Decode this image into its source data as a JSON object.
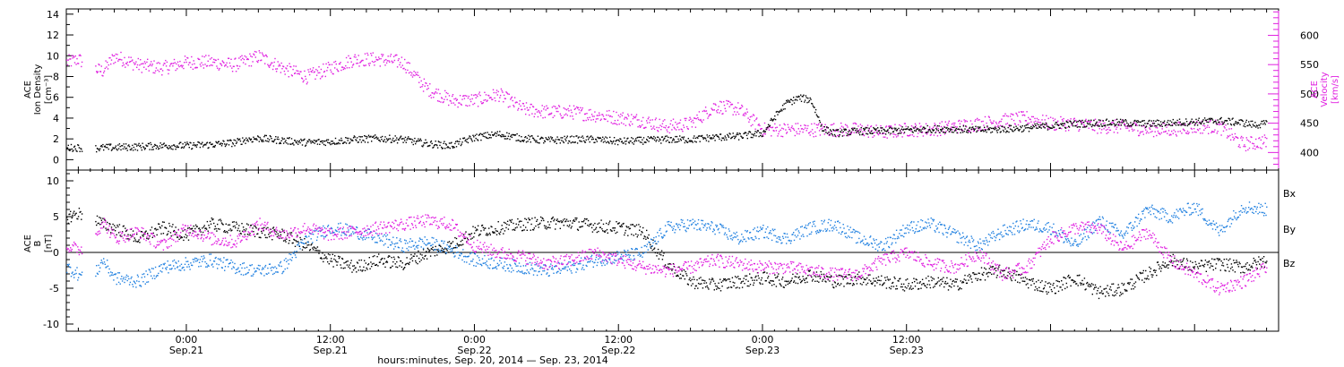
{
  "chart_data": [
    {
      "type": "scatter",
      "panel": "top",
      "x_unit": "hours since Sep. 20, 2014 00:00 (UT)",
      "x_range": [
        14,
        115
      ],
      "ylabel_left": [
        "ACE",
        "Ion Density",
        "[cm⁻³]"
      ],
      "ylabel_right": [
        "ACE",
        "Velocity",
        "[km/s]"
      ],
      "ylim_left": [
        -1,
        14.5
      ],
      "ylim_right": [
        370,
        645
      ],
      "left_ticks": [
        0,
        2,
        4,
        6,
        8,
        10,
        12,
        14
      ],
      "right_ticks": [
        400,
        450,
        500,
        550,
        600
      ],
      "series": [
        {
          "color": "#000000",
          "axis": "left",
          "x": [
            14,
            15,
            16,
            17,
            20,
            22,
            24,
            26,
            27,
            28,
            29,
            30,
            31,
            32,
            33,
            34,
            36,
            38,
            40,
            42,
            44,
            46,
            48,
            50,
            52,
            54,
            56,
            58,
            60,
            62,
            64,
            66,
            68,
            70,
            72,
            73,
            74,
            75,
            76,
            77,
            78,
            80,
            82,
            84,
            86,
            88,
            90,
            92,
            94,
            96,
            98,
            100,
            102,
            104,
            106,
            108,
            110,
            112,
            113,
            114
          ],
          "values": [
            1.2,
            1.2,
            1.1,
            1.2,
            1.3,
            1.4,
            1.4,
            1.5,
            1.6,
            1.7,
            2.0,
            2.1,
            2.0,
            1.9,
            1.8,
            1.7,
            1.8,
            2.0,
            2.1,
            2.0,
            1.6,
            1.4,
            2.2,
            2.5,
            2.1,
            1.9,
            2.0,
            2.0,
            1.8,
            1.9,
            2.0,
            2.0,
            2.2,
            2.3,
            2.6,
            4.2,
            5.5,
            6.0,
            5.8,
            3.0,
            2.6,
            2.8,
            2.8,
            2.9,
            3.0,
            3.0,
            2.9,
            3.0,
            3.1,
            3.3,
            3.5,
            3.6,
            3.6,
            3.5,
            3.6,
            3.7,
            3.8,
            3.6,
            3.4,
            3.5
          ]
        },
        {
          "color": "#e020e0",
          "axis": "right",
          "x": [
            14,
            15,
            16,
            17,
            18,
            20,
            22,
            24,
            26,
            28,
            30,
            32,
            34,
            36,
            38,
            40,
            42,
            44,
            46,
            48,
            50,
            52,
            54,
            56,
            58,
            60,
            62,
            64,
            66,
            68,
            70,
            72,
            74,
            76,
            78,
            80,
            82,
            84,
            86,
            88,
            90,
            92,
            94,
            96,
            98,
            100,
            102,
            104,
            106,
            108,
            110,
            112,
            114
          ],
          "values": [
            555,
            560,
            545,
            540,
            565,
            550,
            545,
            555,
            555,
            550,
            565,
            545,
            530,
            545,
            560,
            560,
            555,
            510,
            490,
            490,
            500,
            475,
            470,
            470,
            465,
            460,
            455,
            445,
            450,
            480,
            475,
            440,
            440,
            440,
            440,
            440,
            435,
            440,
            440,
            445,
            450,
            455,
            460,
            450,
            450,
            445,
            445,
            440,
            440,
            445,
            445,
            415,
            420
          ]
        }
      ]
    },
    {
      "type": "scatter",
      "panel": "bottom",
      "x_unit": "hours since Sep. 20, 2014 00:00 (UT)",
      "x_range": [
        14,
        115
      ],
      "ylabel_left": [
        "ACE",
        "B",
        "[nT]"
      ],
      "ylim": [
        -11,
        11.5
      ],
      "ticks": [
        -10,
        -5,
        0,
        5,
        10
      ],
      "zero_line": true,
      "legend": [
        "Bx",
        "By",
        "Bz"
      ],
      "legend_placement": "right",
      "series": [
        {
          "name": "Bx",
          "color": "#000000",
          "x": [
            14,
            15,
            16,
            17,
            18,
            20,
            22,
            24,
            26,
            28,
            30,
            32,
            34,
            36,
            38,
            40,
            42,
            44,
            46,
            48,
            50,
            52,
            54,
            56,
            58,
            60,
            62,
            64,
            66,
            68,
            70,
            72,
            74,
            76,
            78,
            80,
            82,
            84,
            86,
            88,
            90,
            92,
            94,
            96,
            98,
            100,
            102,
            104,
            106,
            108,
            110,
            112,
            114
          ],
          "values": [
            5.0,
            5.5,
            5.2,
            4.0,
            3.5,
            2.0,
            3.5,
            2.5,
            4.0,
            3.5,
            3.0,
            2.5,
            1.0,
            -1.0,
            -2.0,
            -1.0,
            -1.5,
            0.0,
            1.0,
            3.0,
            3.5,
            4.0,
            4.2,
            4.2,
            3.8,
            3.5,
            3.0,
            -1.5,
            -4.0,
            -4.5,
            -4.0,
            -3.5,
            -4.0,
            -3.0,
            -4.0,
            -3.5,
            -4.0,
            -4.5,
            -4.0,
            -4.5,
            -3.0,
            -2.5,
            -4.0,
            -5.0,
            -3.5,
            -5.5,
            -5.0,
            -3.0,
            -1.0,
            -2.0,
            -1.5,
            -2.0,
            -1.0
          ]
        },
        {
          "name": "By",
          "color": "#2080e0",
          "x": [
            14,
            15,
            16,
            17,
            18,
            20,
            22,
            24,
            26,
            28,
            30,
            32,
            34,
            36,
            38,
            40,
            42,
            44,
            46,
            48,
            50,
            52,
            54,
            56,
            58,
            60,
            62,
            64,
            66,
            68,
            70,
            72,
            74,
            76,
            78,
            80,
            82,
            84,
            86,
            88,
            90,
            92,
            94,
            96,
            98,
            100,
            102,
            104,
            106,
            108,
            110,
            112,
            114
          ],
          "values": [
            -2.0,
            -3.0,
            -4.0,
            -1.0,
            -3.5,
            -4.0,
            -2.0,
            -1.5,
            -1.0,
            -2.0,
            -2.5,
            -2.0,
            2.0,
            3.5,
            3.0,
            2.0,
            1.0,
            1.5,
            0.5,
            -1.0,
            -1.5,
            -2.0,
            -2.5,
            -2.0,
            -1.0,
            -0.5,
            0.0,
            3.5,
            4.0,
            3.5,
            2.0,
            3.0,
            2.0,
            3.5,
            4.0,
            2.0,
            1.0,
            3.5,
            4.0,
            2.5,
            1.0,
            3.0,
            4.0,
            3.5,
            1.0,
            4.5,
            2.5,
            6.0,
            5.0,
            6.5,
            3.0,
            6.5,
            6.0
          ]
        },
        {
          "name": "Bz",
          "color": "#e020e0",
          "x": [
            14,
            15,
            16,
            17,
            18,
            20,
            22,
            24,
            26,
            28,
            30,
            32,
            34,
            36,
            38,
            40,
            42,
            44,
            46,
            48,
            50,
            52,
            54,
            56,
            58,
            60,
            62,
            64,
            66,
            68,
            70,
            72,
            74,
            76,
            78,
            80,
            82,
            84,
            86,
            88,
            90,
            92,
            94,
            96,
            98,
            100,
            102,
            104,
            106,
            108,
            110,
            112,
            114
          ],
          "values": [
            1.0,
            0.5,
            1.0,
            4.5,
            2.0,
            3.0,
            1.0,
            3.5,
            2.0,
            1.5,
            4.0,
            2.5,
            3.5,
            2.5,
            3.0,
            3.5,
            4.0,
            4.5,
            4.0,
            1.0,
            0.0,
            -0.5,
            -1.5,
            -1.0,
            0.0,
            -1.0,
            -2.0,
            -2.5,
            -2.0,
            -1.0,
            -1.5,
            -2.0,
            -2.0,
            -2.5,
            -3.0,
            -3.0,
            -1.0,
            0.0,
            -1.5,
            -2.0,
            0.0,
            -3.0,
            -2.0,
            2.0,
            3.5,
            3.5,
            0.5,
            3.0,
            -1.0,
            -3.0,
            -5.0,
            -4.0,
            -2.0
          ]
        }
      ]
    }
  ],
  "x_ticks": [
    {
      "hour": 24,
      "time": "0:00",
      "date": "Sep.21"
    },
    {
      "hour": 36,
      "time": "12:00",
      "date": "Sep.21"
    },
    {
      "hour": 48,
      "time": "0:00",
      "date": "Sep.22"
    },
    {
      "hour": 60,
      "time": "12:00",
      "date": "Sep.22"
    },
    {
      "hour": 72,
      "time": "0:00",
      "date": "Sep.23"
    },
    {
      "hour": 84,
      "time": "12:00",
      "date": "Sep.23"
    }
  ],
  "xlabel": "hours:minutes, Sep. 20, 2014 — Sep. 23, 2014"
}
